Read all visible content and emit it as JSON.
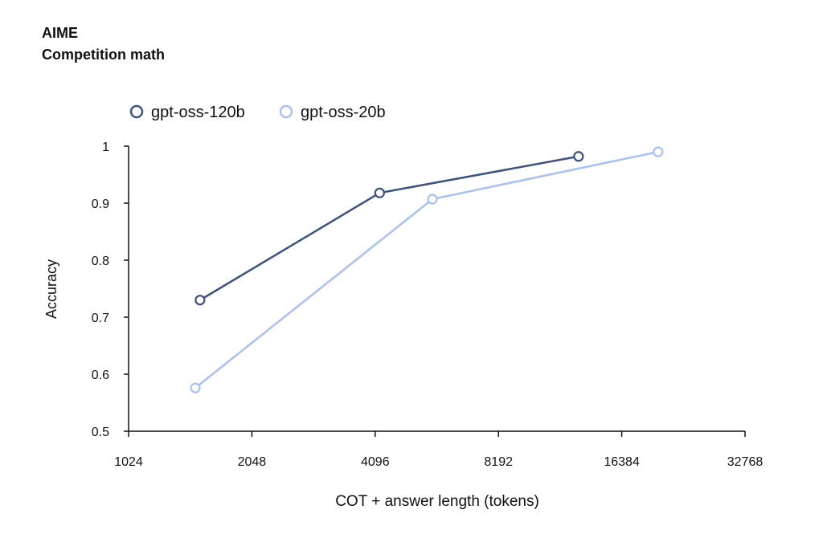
{
  "chart_data": {
    "type": "line",
    "title": "AIME",
    "subtitle": "Competition math",
    "xlabel": "COT + answer length (tokens)",
    "ylabel": "Accuracy",
    "x_scale": "log2",
    "xlim": [
      1024,
      32768
    ],
    "ylim": [
      0.5,
      1
    ],
    "x_ticks": [
      "1024",
      "2048",
      "4096",
      "8192",
      "16384",
      "32768"
    ],
    "y_ticks": [
      "0.5",
      "0.6",
      "0.7",
      "0.8",
      "0.9",
      "1"
    ],
    "grid": false,
    "legend_position": "top-left",
    "series": [
      {
        "name": "gpt-oss-120b",
        "color": "#3d5280",
        "x": [
          1530,
          4200,
          12850
        ],
        "y": [
          0.73,
          0.918,
          0.982
        ]
      },
      {
        "name": "gpt-oss-20b",
        "color": "#a9c0f5",
        "x": [
          1490,
          5650,
          20100
        ],
        "y": [
          0.576,
          0.907,
          0.99
        ]
      }
    ]
  }
}
